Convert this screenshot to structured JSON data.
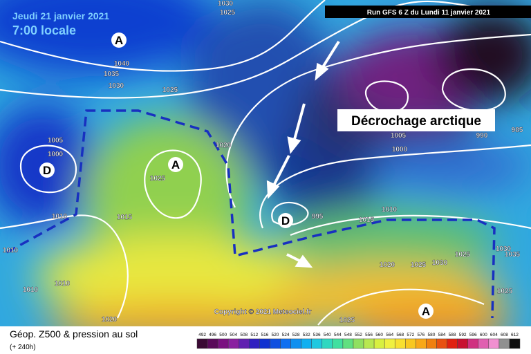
{
  "header": {
    "date": "Jeudi 21 janvier 2021",
    "time": "7:00 locale",
    "run": "Run GFS 6 Z du Lundi 11 janvier 2021"
  },
  "annotation": "Décrochage arctique",
  "copyright": "Copyright © 2021 Meteociel.fr",
  "legend": {
    "title": "Géop. Z500 & pression au sol",
    "lead": "(+ 240h)",
    "scale": [
      492,
      496,
      500,
      504,
      508,
      512,
      516,
      520,
      524,
      528,
      532,
      536,
      540,
      544,
      548,
      552,
      556,
      560,
      564,
      568,
      572,
      576,
      580,
      584,
      588,
      592,
      596,
      600,
      604,
      608,
      612
    ]
  },
  "pressure_labels": [
    1030,
    1025,
    1040,
    1035,
    1030,
    1025,
    1005,
    1000,
    1020,
    1025,
    1015,
    1010,
    1010,
    1010,
    1010,
    1020,
    1025,
    1005,
    1000,
    990,
    985,
    995,
    1010,
    1015,
    1020,
    1025,
    1030,
    1025,
    1030,
    1035,
    1025
  ],
  "highs": [
    "A",
    "A",
    "A"
  ],
  "lows": [
    "D",
    "D"
  ]
}
